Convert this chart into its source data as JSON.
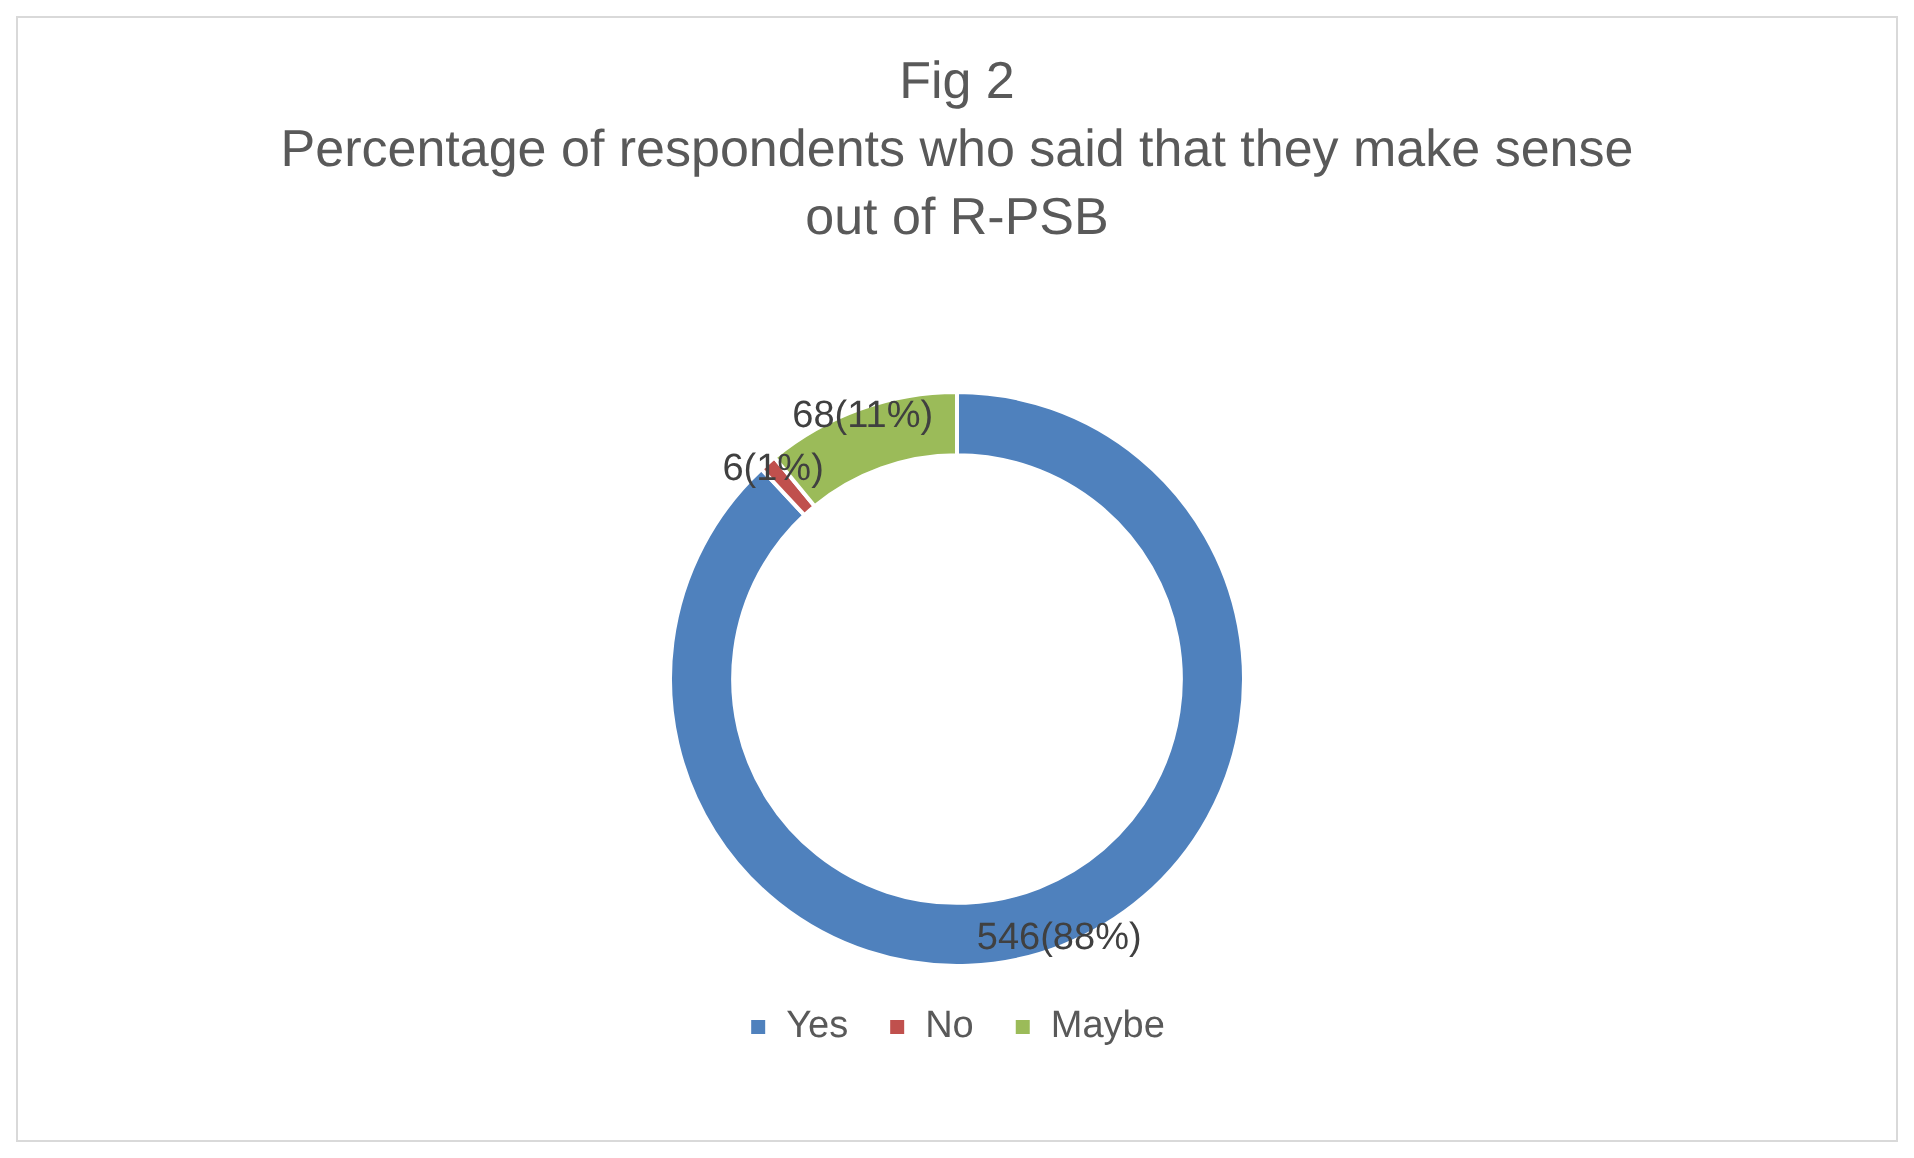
{
  "chart_data": {
    "type": "donut",
    "title": "Fig 2",
    "subtitle": "Percentage of respondents who said that they make sense out of R-PSB",
    "categories": [
      "Yes",
      "No",
      "Maybe"
    ],
    "values": [
      546,
      6,
      68
    ],
    "colors": [
      "#4f81bd",
      "#c0504d",
      "#9bbb59"
    ],
    "value_labels": [
      "546(88%)",
      "6(1%)",
      "68(11%)"
    ],
    "legend": "bottom"
  }
}
